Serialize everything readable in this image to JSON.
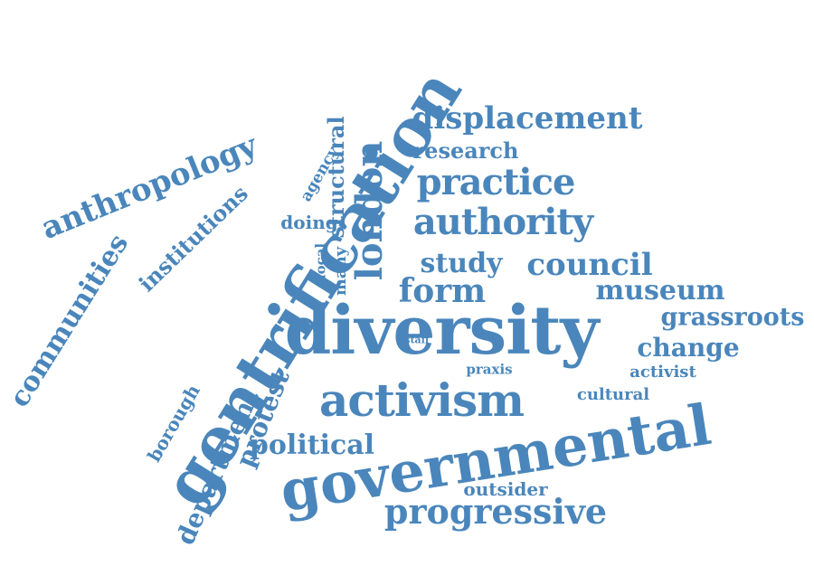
{
  "word_cloud": {
    "color": "#4a86bb",
    "words": [
      "gentrification",
      "diversity",
      "governmental",
      "activism",
      "progressive",
      "authority",
      "practice",
      "displacement",
      "london",
      "anthropology",
      "communities",
      "institutions",
      "political",
      "protest",
      "department",
      "borough",
      "study",
      "council",
      "form",
      "museum",
      "grassroots",
      "change",
      "activist",
      "cultural",
      "praxis",
      "staff",
      "outsider",
      "research",
      "structural",
      "agency",
      "doing",
      "local",
      "many"
    ]
  }
}
